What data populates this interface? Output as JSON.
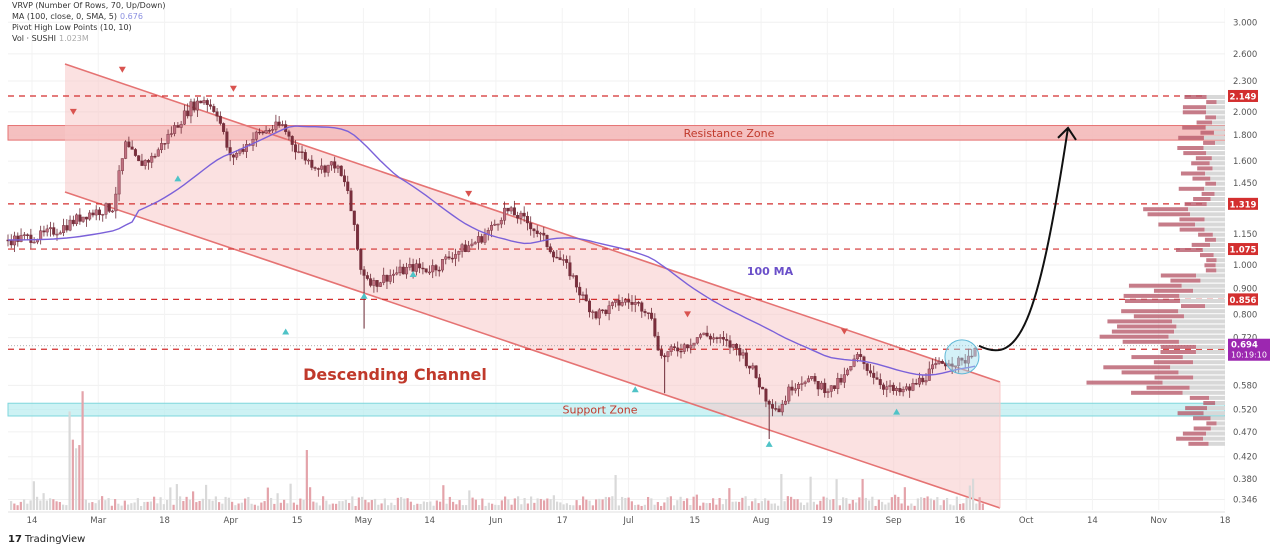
{
  "legend": [
    {
      "label": "VRVP (Number Of Rows, 70, Up/Down)",
      "value": ""
    },
    {
      "label": "MA (100, close, 0, SMA, 5)",
      "value": "0.676"
    },
    {
      "label": "Pivot High Low Points (10, 10)",
      "value": ""
    },
    {
      "label": "Vol · SUSHI",
      "value": "1.023M"
    }
  ],
  "footer": {
    "logo": "17",
    "brand": "TradingView"
  },
  "colors": {
    "channel": "#e57373",
    "channel_fill": "#f8c9c9",
    "resistance": "#f3b5b5",
    "support": "#b8ecf0",
    "ma": "#7b61d9",
    "candle_up": "#a63d52",
    "candle_down": "#a63d52",
    "level_line": "#d32f2f",
    "pivot_high": "#d9534f",
    "pivot_low": "#4fc3c7",
    "vol_bar": "#e9b8b8",
    "vrvp": "#b85b6b"
  },
  "chart_data": {
    "type": "candlestick",
    "y_scale": "log",
    "ylim": [
      0.33,
      3.2
    ],
    "y_ticks": [
      "3.000",
      "2.600",
      "2.300",
      "2.000",
      "1.800",
      "1.600",
      "1.450",
      "1.150",
      "1.000",
      "0.900",
      "0.800",
      "0.720",
      "0.580",
      "0.520",
      "0.470",
      "0.420",
      "0.380",
      "0.346"
    ],
    "x_ticks": [
      "14",
      "Mar",
      "18",
      "Apr",
      "15",
      "May",
      "14",
      "Jun",
      "17",
      "Jul",
      "15",
      "Aug",
      "19",
      "Sep",
      "16",
      "Oct",
      "14",
      "Nov",
      "18"
    ],
    "price_levels": [
      {
        "label": "2.149",
        "value": 2.149
      },
      {
        "label": "1.319",
        "value": 1.319
      },
      {
        "label": "1.075",
        "value": 1.075
      },
      {
        "label": "0.856",
        "value": 0.856
      },
      {
        "label": "0.683",
        "value": 0.683
      }
    ],
    "current_price": {
      "label": "0.694",
      "countdown": "10:19:10",
      "value": 0.694
    },
    "zones": [
      {
        "label": "Resistance Zone",
        "low": 1.76,
        "high": 1.88
      },
      {
        "label": "Support Zone",
        "low": 0.505,
        "high": 0.535
      }
    ],
    "annotations": {
      "channel_label": "Descending Channel",
      "ma_label": "100 MA"
    },
    "series": [
      {
        "name": "SUSHI",
        "close_path": [
          [
            0,
            1.12
          ],
          [
            5,
            1.14
          ],
          [
            8,
            1.18
          ],
          [
            12,
            1.26
          ],
          [
            16,
            1.3
          ],
          [
            18,
            1.72
          ],
          [
            20,
            1.58
          ],
          [
            22,
            1.62
          ],
          [
            26,
            1.9
          ],
          [
            28,
            2.05
          ],
          [
            30,
            2.12
          ],
          [
            32,
            2.0
          ],
          [
            34,
            1.62
          ],
          [
            36,
            1.7
          ],
          [
            38,
            1.8
          ],
          [
            40,
            1.85
          ],
          [
            42,
            1.88
          ],
          [
            44,
            1.7
          ],
          [
            46,
            1.6
          ],
          [
            48,
            1.55
          ],
          [
            50,
            1.58
          ],
          [
            52,
            1.4
          ],
          [
            54,
            0.98
          ],
          [
            56,
            0.92
          ],
          [
            58,
            0.95
          ],
          [
            60,
            0.97
          ],
          [
            62,
            0.99
          ],
          [
            64,
            0.98
          ],
          [
            66,
            1.0
          ],
          [
            68,
            1.05
          ],
          [
            70,
            1.08
          ],
          [
            72,
            1.12
          ],
          [
            74,
            1.18
          ],
          [
            76,
            1.28
          ],
          [
            78,
            1.25
          ],
          [
            80,
            1.2
          ],
          [
            82,
            1.12
          ],
          [
            84,
            1.04
          ],
          [
            86,
            0.97
          ],
          [
            88,
            0.86
          ],
          [
            90,
            0.8
          ],
          [
            92,
            0.82
          ],
          [
            94,
            0.85
          ],
          [
            96,
            0.84
          ],
          [
            98,
            0.82
          ],
          [
            100,
            0.66
          ],
          [
            102,
            0.68
          ],
          [
            104,
            0.7
          ],
          [
            106,
            0.73
          ],
          [
            108,
            0.72
          ],
          [
            110,
            0.7
          ],
          [
            112,
            0.68
          ],
          [
            114,
            0.62
          ],
          [
            116,
            0.55
          ],
          [
            118,
            0.52
          ],
          [
            120,
            0.58
          ],
          [
            122,
            0.6
          ],
          [
            124,
            0.58
          ],
          [
            126,
            0.57
          ],
          [
            128,
            0.6
          ],
          [
            130,
            0.66
          ],
          [
            132,
            0.62
          ],
          [
            134,
            0.58
          ],
          [
            136,
            0.56
          ],
          [
            138,
            0.57
          ],
          [
            140,
            0.6
          ],
          [
            142,
            0.63
          ],
          [
            144,
            0.65
          ],
          [
            146,
            0.64
          ],
          [
            148,
            0.69
          ]
        ]
      }
    ],
    "projection": {
      "from": 0.694,
      "to": 1.86
    }
  }
}
